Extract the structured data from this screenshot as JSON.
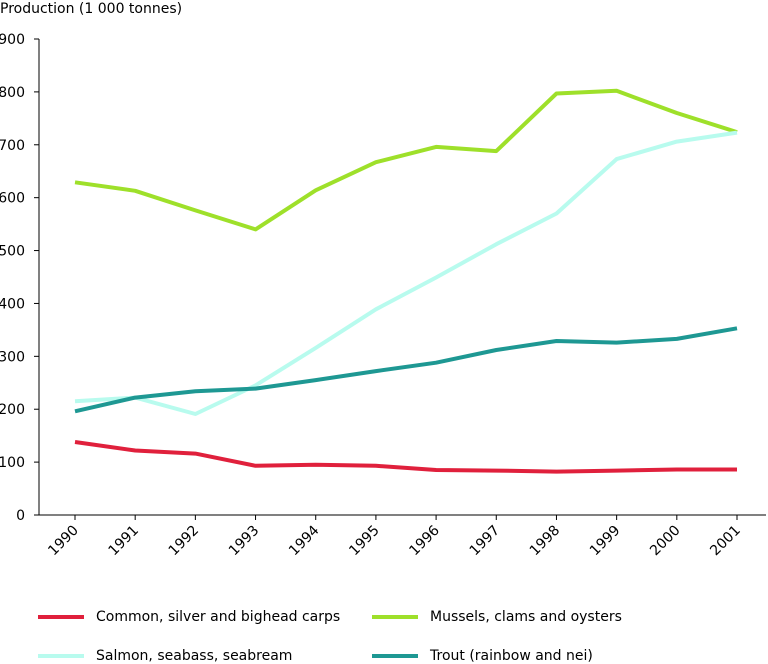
{
  "chart_data": {
    "type": "line",
    "title": "",
    "ylabel": "Production (1 000 tonnes)",
    "xlabel": "",
    "categories": [
      "1990",
      "1991",
      "1992",
      "1993",
      "1994",
      "1995",
      "1996",
      "1997",
      "1998",
      "1999",
      "2000",
      "2001"
    ],
    "ylim": [
      0,
      900
    ],
    "yticks": [
      "0",
      "100",
      "200",
      "300",
      "400",
      "500",
      "600",
      "700",
      "800",
      "900"
    ],
    "grid": false,
    "legend_position": "bottom",
    "series": [
      {
        "name": "Common, silver and bighead carps",
        "color": "#e0203c",
        "values": [
          138,
          122,
          116,
          93,
          95,
          93,
          85,
          84,
          82,
          84,
          86,
          86
        ]
      },
      {
        "name": "Mussels, clams and oysters",
        "color": "#9ee02a",
        "values": [
          629,
          613,
          576,
          540,
          614,
          667,
          696,
          688,
          797,
          802,
          760,
          724
        ]
      },
      {
        "name": "Salmon, seabass, seabream",
        "color": "#b8fbee",
        "values": [
          215,
          222,
          191,
          245,
          316,
          389,
          449,
          512,
          570,
          673,
          706,
          723
        ]
      },
      {
        "name": "Trout (rainbow and nei)",
        "color": "#1e9893",
        "values": [
          196,
          222,
          234,
          239,
          255,
          272,
          288,
          312,
          329,
          326,
          333,
          353
        ]
      }
    ]
  }
}
